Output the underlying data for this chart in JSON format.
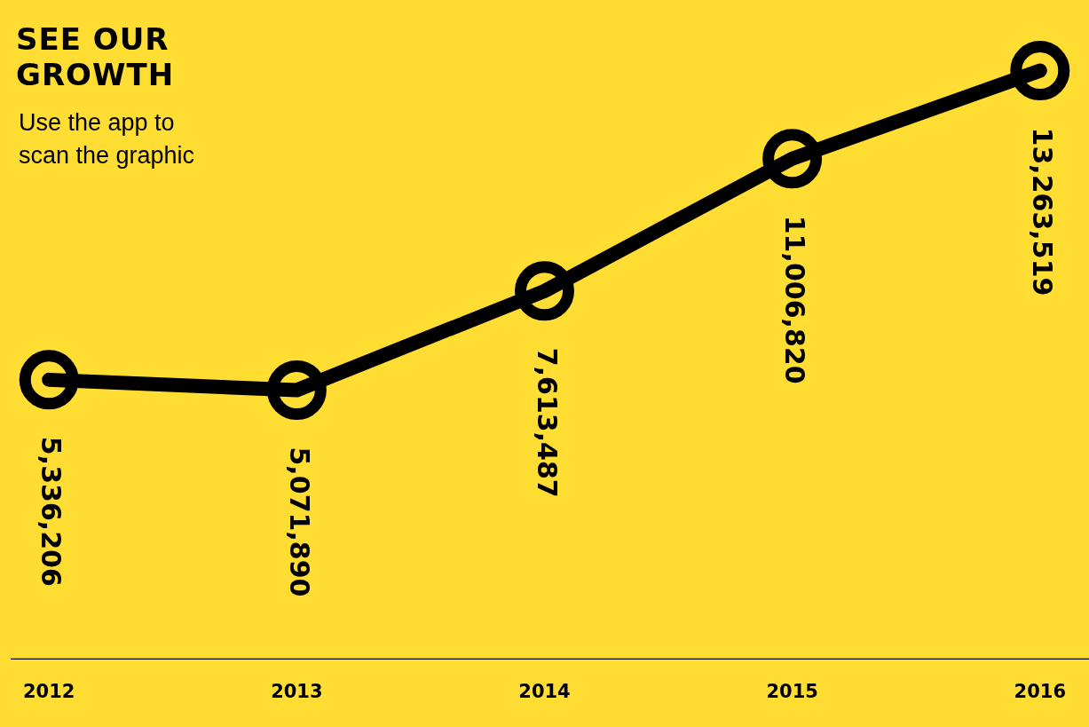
{
  "chart_data": {
    "type": "line",
    "title": "SEE OUR\nGROWTH",
    "subtitle": "Use the app to\nscan the graphic",
    "categories": [
      "2012",
      "2013",
      "2014",
      "2015",
      "2016"
    ],
    "series": [
      {
        "color": "#000000",
        "values": [
          5336206,
          5071890,
          7613487,
          11006820,
          13263519
        ],
        "value_labels": [
          "5,336,206",
          "5,071,890",
          "7,613,487",
          "11,006,820",
          "13,263,519"
        ]
      }
    ],
    "grid": false,
    "legend": false,
    "line_style": "solid"
  }
}
